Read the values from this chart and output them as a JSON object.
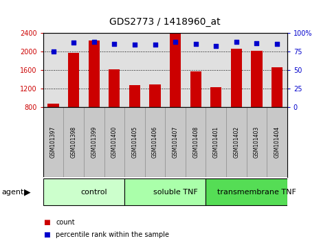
{
  "title": "GDS2773 / 1418960_at",
  "samples": [
    "GSM101397",
    "GSM101398",
    "GSM101399",
    "GSM101400",
    "GSM101405",
    "GSM101406",
    "GSM101407",
    "GSM101408",
    "GSM101401",
    "GSM101402",
    "GSM101403",
    "GSM101404"
  ],
  "counts": [
    870,
    1970,
    2230,
    1610,
    1270,
    1280,
    2390,
    1570,
    1220,
    2060,
    2010,
    1660
  ],
  "percentiles": [
    75,
    87,
    88,
    85,
    84,
    84,
    88,
    85,
    82,
    88,
    86,
    85
  ],
  "groups": [
    {
      "label": "control",
      "start": 0,
      "end": 4,
      "color": "#ccffcc"
    },
    {
      "label": "soluble TNF",
      "start": 4,
      "end": 8,
      "color": "#aaffaa"
    },
    {
      "label": "transmembrane TNF",
      "start": 8,
      "end": 12,
      "color": "#55dd55"
    }
  ],
  "ymin": 800,
  "ymax": 2400,
  "yticks_left": [
    800,
    1200,
    1600,
    2000,
    2400
  ],
  "yticks_right": [
    0,
    25,
    50,
    75,
    100
  ],
  "bar_color": "#cc0000",
  "scatter_color": "#0000cc",
  "plot_bg": "#e0e0e0",
  "bg_color": "#ffffff",
  "sample_bg": "#c8c8c8",
  "title_fontsize": 10,
  "tick_fontsize": 7,
  "sample_fontsize": 5.5,
  "group_fontsize": 8,
  "legend_fontsize": 7,
  "agent_fontsize": 8
}
